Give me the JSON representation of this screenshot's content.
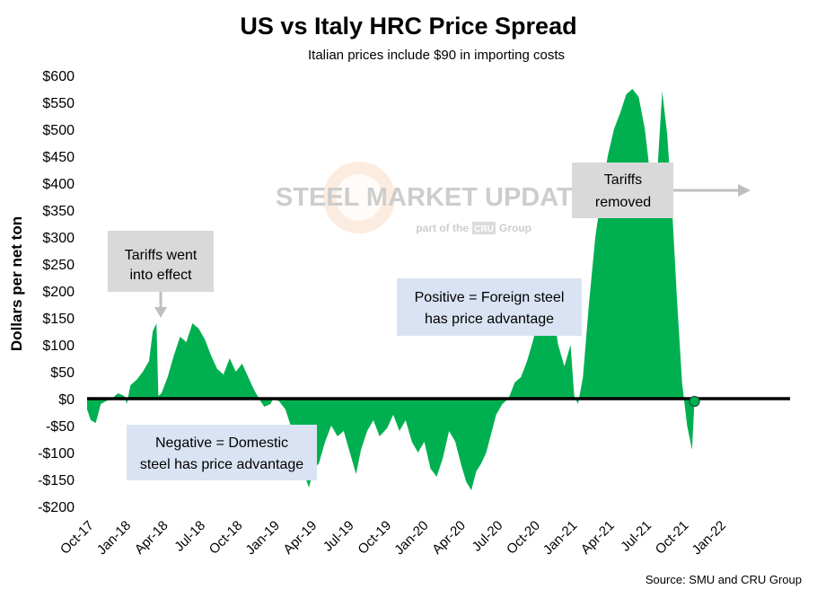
{
  "chart_data": {
    "type": "area",
    "title": "US vs Italy HRC Price Spread",
    "subtitle": "Italian prices include $90 in importing costs",
    "ylabel": "Dollars per net ton",
    "xlabel": "",
    "ylim": [
      -200,
      600
    ],
    "y_ticks": [
      600,
      550,
      500,
      450,
      400,
      350,
      300,
      250,
      200,
      150,
      100,
      50,
      0,
      -50,
      -100,
      -150,
      -200
    ],
    "y_tick_labels": [
      "$600",
      "$550",
      "$500",
      "$450",
      "$400",
      "$350",
      "$300",
      "$250",
      "$200",
      "$150",
      "$100",
      "$50",
      "$0",
      "-$50",
      "-$100",
      "-$150",
      "-$200"
    ],
    "x_tick_labels": [
      "Oct-17",
      "Jan-18",
      "Apr-18",
      "Jul-18",
      "Oct-18",
      "Jan-19",
      "Apr-19",
      "Jul-19",
      "Oct-19",
      "Jan-20",
      "Apr-20",
      "Jul-20",
      "Oct-20",
      "Jan-21",
      "Apr-21",
      "Jul-21",
      "Oct-21",
      "Jan-22"
    ],
    "x_range_months": [
      0,
      57
    ],
    "series": [
      {
        "name": "US vs Italy HRC spread ($/net ton)",
        "color": "#00b050",
        "points": [
          [
            0,
            -20
          ],
          [
            0.3,
            -40
          ],
          [
            0.7,
            -45
          ],
          [
            1.1,
            -10
          ],
          [
            1.5,
            -5
          ],
          [
            2,
            0
          ],
          [
            2.5,
            10
          ],
          [
            3,
            5
          ],
          [
            3.2,
            -10
          ],
          [
            3.5,
            25
          ],
          [
            4,
            35
          ],
          [
            4.5,
            50
          ],
          [
            5,
            70
          ],
          [
            5.3,
            125
          ],
          [
            5.6,
            140
          ],
          [
            5.75,
            5
          ],
          [
            6,
            10
          ],
          [
            6.5,
            40
          ],
          [
            7,
            80
          ],
          [
            7.5,
            115
          ],
          [
            8,
            105
          ],
          [
            8.5,
            140
          ],
          [
            9,
            130
          ],
          [
            9.5,
            110
          ],
          [
            10,
            80
          ],
          [
            10.5,
            55
          ],
          [
            11,
            45
          ],
          [
            11.5,
            75
          ],
          [
            12,
            50
          ],
          [
            12.5,
            65
          ],
          [
            13,
            40
          ],
          [
            13.5,
            15
          ],
          [
            14,
            -5
          ],
          [
            14.3,
            -15
          ],
          [
            14.8,
            -10
          ],
          [
            15,
            0
          ],
          [
            15.5,
            -5
          ],
          [
            16,
            -20
          ],
          [
            16.5,
            -55
          ],
          [
            17,
            -90
          ],
          [
            17.5,
            -140
          ],
          [
            17.9,
            -165
          ],
          [
            18.3,
            -130
          ],
          [
            18.7,
            -120
          ],
          [
            19.2,
            -80
          ],
          [
            19.7,
            -50
          ],
          [
            20.2,
            -70
          ],
          [
            20.7,
            -60
          ],
          [
            21.2,
            -100
          ],
          [
            21.7,
            -140
          ],
          [
            22.1,
            -95
          ],
          [
            22.6,
            -60
          ],
          [
            23.1,
            -40
          ],
          [
            23.6,
            -70
          ],
          [
            24.2,
            -55
          ],
          [
            24.7,
            -30
          ],
          [
            25.2,
            -60
          ],
          [
            25.7,
            -40
          ],
          [
            26.2,
            -80
          ],
          [
            26.7,
            -100
          ],
          [
            27.2,
            -80
          ],
          [
            27.7,
            -130
          ],
          [
            28.2,
            -145
          ],
          [
            28.7,
            -110
          ],
          [
            29.2,
            -60
          ],
          [
            29.7,
            -80
          ],
          [
            30.2,
            -125
          ],
          [
            30.6,
            -155
          ],
          [
            31,
            -170
          ],
          [
            31.4,
            -135
          ],
          [
            31.8,
            -120
          ],
          [
            32.2,
            -100
          ],
          [
            32.6,
            -65
          ],
          [
            33,
            -30
          ],
          [
            33.5,
            -10
          ],
          [
            34,
            0
          ],
          [
            34.5,
            30
          ],
          [
            35,
            40
          ],
          [
            35.5,
            70
          ],
          [
            36,
            110
          ],
          [
            36.5,
            160
          ],
          [
            37,
            200
          ],
          [
            37.3,
            210
          ],
          [
            37.6,
            160
          ],
          [
            38,
            100
          ],
          [
            38.5,
            60
          ],
          [
            39,
            100
          ],
          [
            39.3,
            5
          ],
          [
            39.6,
            -10
          ],
          [
            40,
            40
          ],
          [
            40.5,
            180
          ],
          [
            41,
            300
          ],
          [
            41.5,
            380
          ],
          [
            42,
            450
          ],
          [
            42.5,
            500
          ],
          [
            43,
            530
          ],
          [
            43.5,
            565
          ],
          [
            44,
            575
          ],
          [
            44.5,
            560
          ],
          [
            45,
            500
          ],
          [
            45.5,
            400
          ],
          [
            46,
            420
          ],
          [
            46.4,
            570
          ],
          [
            46.8,
            490
          ],
          [
            47.2,
            350
          ],
          [
            47.6,
            180
          ],
          [
            48,
            30
          ],
          [
            48.4,
            -50
          ],
          [
            48.8,
            -95
          ],
          [
            49,
            -5
          ]
        ]
      }
    ],
    "end_marker": {
      "x": 49,
      "y": -5
    },
    "annotations": [
      {
        "text": "Tariffs went into effect",
        "lines": [
          "Tariffs went",
          "into effect"
        ],
        "arrow_target": [
          5.6,
          140
        ]
      },
      {
        "text": "Tariffs removed",
        "lines": [
          "Tariffs",
          "removed"
        ],
        "arrow_target": [
          45.7,
          390
        ]
      },
      {
        "text": "Positive = Foreign steel has price advantage",
        "lines": [
          "Positive = Foreign steel",
          "has price advantage"
        ]
      },
      {
        "text": "Negative = Domestic steel has price advantage",
        "lines": [
          "Negative = Domestic",
          "steel has price advantage"
        ]
      }
    ],
    "watermark": {
      "brand": "STEEL MARKET UPDATE",
      "tagline_prefix": "part of the",
      "tagline_logo": "CRU",
      "tagline_suffix": "Group"
    },
    "source": "Source: SMU and CRU Group",
    "grid": false,
    "legend": "none"
  }
}
